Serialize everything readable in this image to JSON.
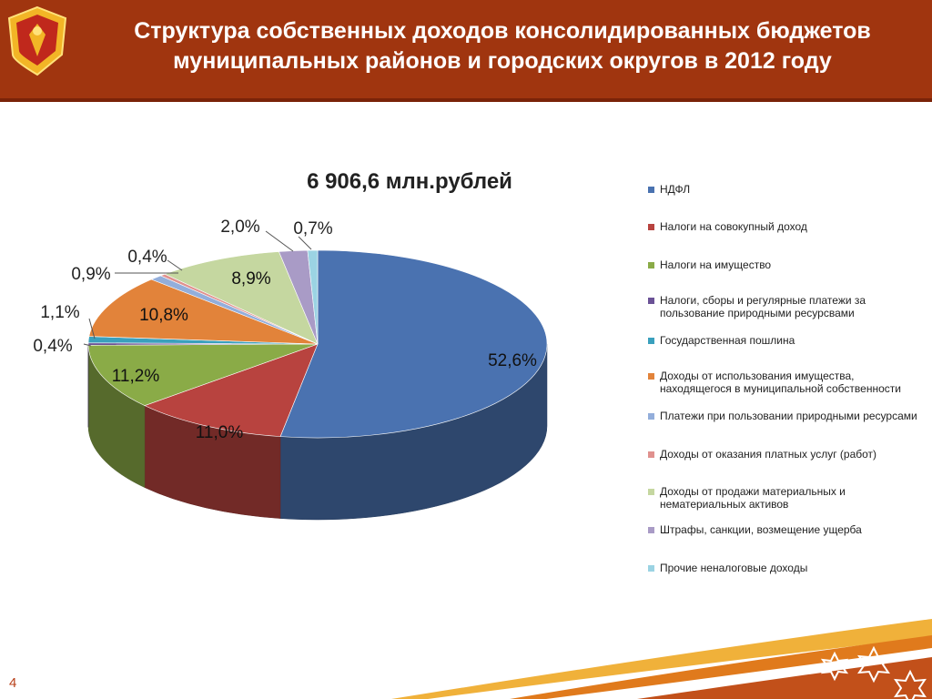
{
  "header": {
    "title_line1": "Структура  собственных доходов консолидированных бюджетов",
    "title_line2": "муниципальных районов и городских округов в 2012 году"
  },
  "colors": {
    "header_bg": "#a0350f",
    "accent": "#e88a2a"
  },
  "page_number": "4",
  "chart_data": {
    "type": "pie",
    "title": "6 906,6 млн.рублей",
    "three_d": true,
    "legend_position": "right",
    "slices": [
      {
        "name": "НДФЛ",
        "value": 52.6,
        "label": "52,6%",
        "color": "#4a72b0"
      },
      {
        "name": "Налоги на совокупный доход",
        "value": 11.0,
        "label": "11,0%",
        "color": "#b8433f"
      },
      {
        "name": "Налоги на имущество",
        "value": 11.2,
        "label": "11,2%",
        "color": "#8aab47"
      },
      {
        "name": "Налоги, сборы и регулярные платежи за пользование природными ресурсвами",
        "value": 0.4,
        "label": "0,4%",
        "color": "#6b5296"
      },
      {
        "name": "Государственная пошлина",
        "value": 1.1,
        "label": "1,1%",
        "color": "#3aa0bd"
      },
      {
        "name": "Доходы от использования имущества, находящегося в муниципальной собственности",
        "value": 10.8,
        "label": "10,8%",
        "color": "#e2833a"
      },
      {
        "name": "Платежи при пользовании природными ресурсами",
        "value": 0.9,
        "label": "0,9%",
        "color": "#93aedb"
      },
      {
        "name": "Доходы от оказания платных  услуг (работ)",
        "value": 0.4,
        "label": "0,4%",
        "color": "#e0918e"
      },
      {
        "name": "Доходы от продажи материальных и нематериальных активов",
        "value": 8.9,
        "label": "8,9%",
        "color": "#c5d7a0"
      },
      {
        "name": "Штрафы, санкции, возмещение ущерба",
        "value": 2.0,
        "label": "2,0%",
        "color": "#a99bc6"
      },
      {
        "name": "Прочие неналоговые доходы",
        "value": 0.7,
        "label": "0,7%",
        "color": "#9bd3e3"
      }
    ]
  }
}
